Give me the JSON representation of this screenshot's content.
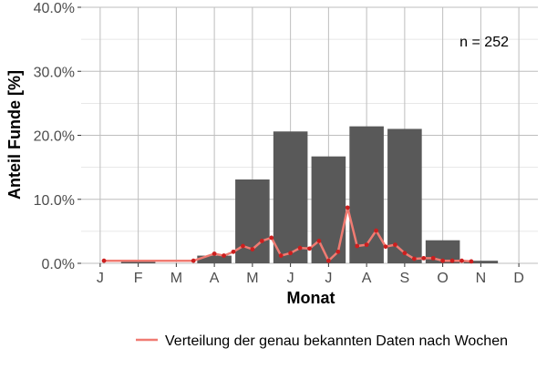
{
  "chart_data": {
    "type": "bar",
    "xlabel": "Monat",
    "ylabel": "Anteil Funde [%]",
    "ylim": [
      0,
      40
    ],
    "yticks": [
      "0.0%",
      "10.0%",
      "20.0%",
      "30.0%",
      "40.0%"
    ],
    "ytick_values": [
      0,
      10,
      20,
      30,
      40
    ],
    "grid": true,
    "annotation": "n = 252",
    "colors": {
      "bar": "#595959",
      "line": "#F07B72",
      "point": "#CC1F1F",
      "grid": "#BEBEBE"
    },
    "categories": [
      "J",
      "F",
      "M",
      "A",
      "M",
      "J",
      "J",
      "A",
      "S",
      "O",
      "N",
      "D"
    ],
    "values": [
      0.0,
      0.4,
      0.0,
      1.2,
      13.1,
      20.6,
      16.7,
      21.4,
      21.0,
      3.6,
      0.4,
      0.0
    ],
    "line_series": {
      "name": "Verteilung der genau bekannten Daten nach Wochen",
      "legend_position": "bottom",
      "x": [
        1.1,
        3.45,
        4.0,
        4.25,
        4.5,
        4.75,
        5.0,
        5.25,
        5.5,
        5.75,
        6.0,
        6.25,
        6.5,
        6.75,
        7.0,
        7.25,
        7.5,
        7.75,
        8.0,
        8.25,
        8.5,
        8.75,
        9.0,
        9.25,
        9.5,
        9.75,
        10.0,
        10.25,
        10.5,
        10.75
      ],
      "y": [
        0.4,
        0.4,
        1.5,
        1.2,
        1.8,
        2.7,
        2.2,
        3.5,
        4.0,
        1.2,
        1.6,
        2.4,
        2.3,
        3.5,
        0.4,
        1.8,
        8.7,
        2.7,
        2.9,
        5.1,
        2.6,
        2.9,
        1.6,
        0.7,
        0.8,
        0.8,
        0.4,
        0.4,
        0.4,
        0.3
      ]
    }
  }
}
